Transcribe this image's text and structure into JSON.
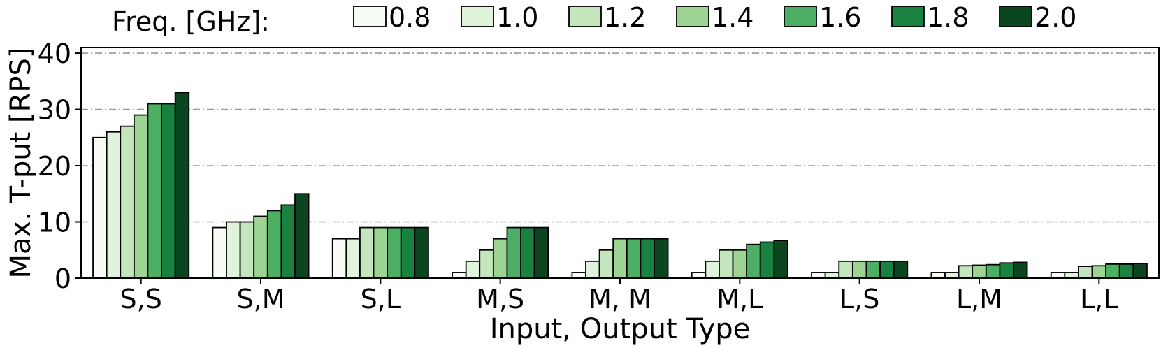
{
  "chart_data": {
    "type": "bar",
    "title": "",
    "xlabel": "Input, Output Type",
    "ylabel": "Max. T-put [RPS]",
    "ylim": [
      0,
      41
    ],
    "yticks": [
      "0",
      "10",
      "20",
      "30",
      "40"
    ],
    "grid": "horizontal dash-dot",
    "legend": {
      "title": "Freq. [GHz]:",
      "placement": "top"
    },
    "categories": [
      "S,S",
      "S,M",
      "S,L",
      "M,S",
      "M, M",
      "M,L",
      "L,S",
      "L,M",
      "L,L"
    ],
    "series": [
      {
        "name": "0.8",
        "color": "#f7fcf5",
        "values": [
          25,
          9,
          7,
          1,
          1,
          1,
          1,
          1,
          1
        ]
      },
      {
        "name": "1.0",
        "color": "#e0f3db",
        "values": [
          26,
          10,
          7,
          3,
          3,
          3,
          1,
          1,
          1
        ]
      },
      {
        "name": "1.2",
        "color": "#c3e6bd",
        "values": [
          27,
          10,
          9,
          5,
          5,
          5,
          3,
          2.2,
          2.1
        ]
      },
      {
        "name": "1.4",
        "color": "#9dd493",
        "values": [
          29,
          11,
          9,
          7,
          7,
          5,
          3,
          2.3,
          2.2
        ]
      },
      {
        "name": "1.6",
        "color": "#4caf63",
        "values": [
          31,
          12,
          9,
          9,
          7,
          6,
          3,
          2.4,
          2.5
        ]
      },
      {
        "name": "1.8",
        "color": "#1a8240",
        "values": [
          31,
          13,
          9,
          9,
          7,
          6.4,
          3,
          2.7,
          2.5
        ]
      },
      {
        "name": "2.0",
        "color": "#0b4620",
        "values": [
          33,
          15,
          9,
          9,
          7,
          6.7,
          3,
          2.8,
          2.6
        ]
      }
    ]
  }
}
